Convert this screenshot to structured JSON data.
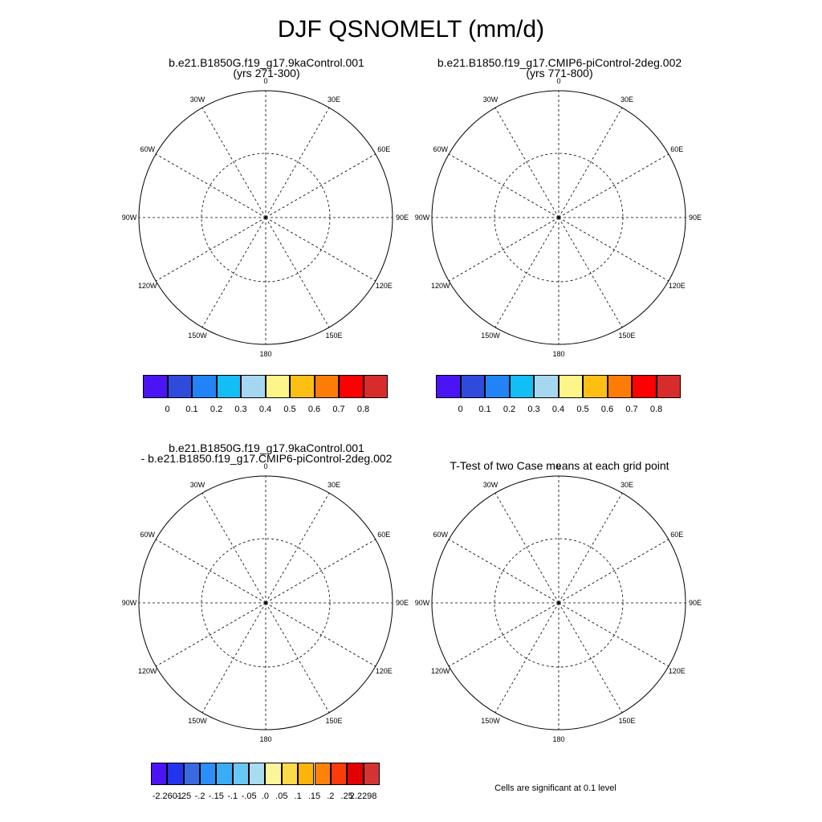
{
  "title": "DJF QSNOMELT (mm/d)",
  "panels": [
    {
      "id": "case1",
      "title_lines": [
        "b.e21.B1850G.f19_g17.9kaControl.001",
        "(yrs 271-300)"
      ]
    },
    {
      "id": "case2",
      "title_lines": [
        "b.e21.B1850.f19_g17.CMIP6-piControl-2deg.002",
        "(yrs 771-800)"
      ]
    },
    {
      "id": "diff",
      "title_lines": [
        "b.e21.B1850G.f19_g17.9kaControl.001",
        "- b.e21.B1850.f19_g17.CMIP6-piControl-2deg.002"
      ]
    },
    {
      "id": "ttest",
      "title_lines": [
        "T-Test of two Case means at each grid point"
      ]
    }
  ],
  "longitude_labels": [
    "0",
    "30E",
    "60E",
    "90E",
    "120E",
    "150E",
    "180",
    "150W",
    "120W",
    "90W",
    "60W",
    "30W"
  ],
  "colorbar_abs": {
    "labels": [
      "0",
      "0.1",
      "0.2",
      "0.3",
      "0.4",
      "0.5",
      "0.6",
      "0.7",
      "0.8"
    ],
    "colors": [
      "#4b14f4",
      "#2e4bdc",
      "#2183f5",
      "#13bdf6",
      "#a5d7f0",
      "#fdf58a",
      "#fdbf14",
      "#fd7c05",
      "#fd0000",
      "#d82c2c"
    ]
  },
  "colorbar_diff": {
    "labels": [
      "-2.2601",
      "-.25",
      "-.2",
      "-.15",
      "-.1",
      "-.05",
      ".0",
      ".05",
      ".1",
      ".15",
      ".2",
      ".25",
      "2.2298"
    ],
    "colors": [
      "#4b14f4",
      "#2234ee",
      "#3b6ae0",
      "#2a8df8",
      "#3aacf6",
      "#68c8f5",
      "#a8dcf0",
      "#fdf59a",
      "#fdda4a",
      "#fdb40a",
      "#fd820a",
      "#fd3a0a",
      "#e30000",
      "#d23434"
    ]
  },
  "significance_color": "#f00000",
  "land_color": "#2e4bdc",
  "diff_land_color": "#fdf59a",
  "footnote": "Cells are significant at 0.1 level"
}
